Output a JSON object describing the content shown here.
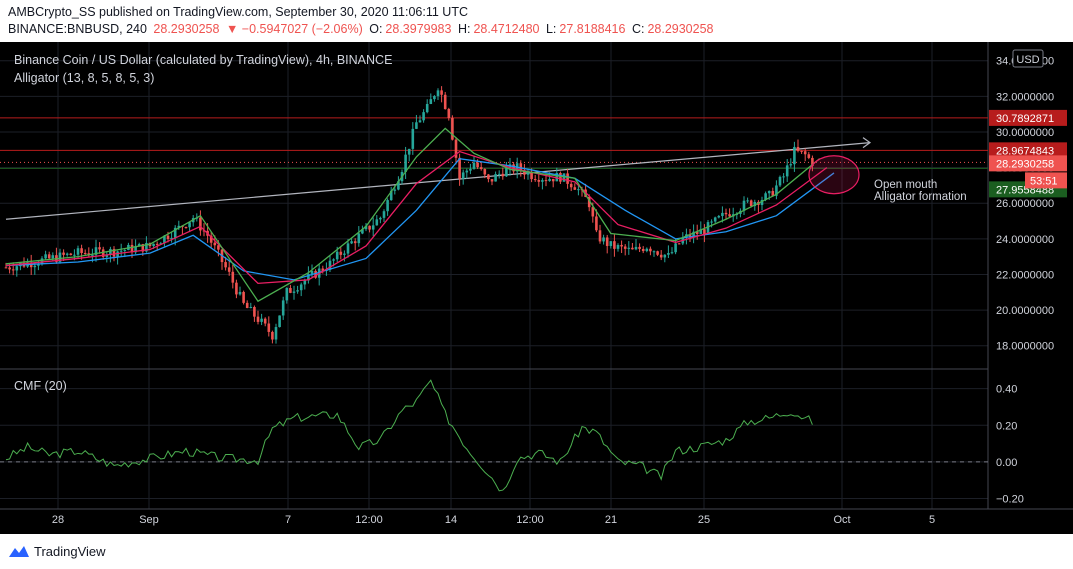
{
  "header": {
    "line1": "AMBCrypto_SS published on TradingView.com, September 30, 2020 11:06:11 UTC",
    "symbol": "BINANCE:BNBUSD, 240",
    "last": "28.2930258",
    "change": "▼ −0.5947027 (−2.06%)",
    "o_label": "O:",
    "o": "28.3979983",
    "h_label": "H:",
    "h": "28.4712480",
    "l_label": "L:",
    "l": "27.8188416",
    "c_label": "C:",
    "c": "28.2930258"
  },
  "pane": {
    "title": "Binance Coin / US Dollar (calculated by TradingView), 4h, BINANCE",
    "indicator": "Alligator (13, 8, 5, 8, 5, 3)",
    "currency": "USD",
    "annotation_line1": "Open mouth",
    "annotation_line2": "Alligator formation",
    "cmf_label": "CMF (20)"
  },
  "footer": {
    "brand": "TradingView"
  },
  "colors": {
    "background": "#000000",
    "up": "#26a69a",
    "down": "#ef5350",
    "jaw": "#2196f3",
    "teeth": "#e91e63",
    "lips": "#4caf50",
    "cmf": "#4caf50",
    "resistance": "#b71c1c",
    "support": "#1b5e20"
  },
  "chart_data": [
    {
      "type": "candlestick",
      "title": "Binance Coin / US Dollar (calculated by TradingView), 4h, BINANCE",
      "x_ticks": [
        "28",
        "Sep",
        "7",
        "12:00",
        "14",
        "12:00",
        "21",
        "25",
        "Oct",
        "5"
      ],
      "y_ticks": [
        18,
        20,
        22,
        24,
        26,
        28,
        30,
        32,
        34
      ],
      "ylim": [
        17.2,
        34.6
      ],
      "price_labels": [
        {
          "value": 30.7892871,
          "text": "30.7892871",
          "role": "resistance"
        },
        {
          "value": 28.9674843,
          "text": "28.9674843",
          "role": "resistance"
        },
        {
          "value": 28.2930258,
          "text": "28.2930258",
          "role": "last"
        },
        {
          "value": 27.9558488,
          "text": "27.9558488",
          "role": "support"
        }
      ],
      "countdown": "53:51",
      "close_path": [
        [
          0,
          22.4
        ],
        [
          10,
          22.8
        ],
        [
          20,
          23.2
        ],
        [
          30,
          23.3
        ],
        [
          40,
          23.6
        ],
        [
          48,
          24.6
        ],
        [
          52,
          25.2
        ],
        [
          56,
          24.2
        ],
        [
          62,
          22.0
        ],
        [
          66,
          20.3
        ],
        [
          70,
          19.5
        ],
        [
          74,
          18.6
        ],
        [
          78,
          21.0
        ],
        [
          84,
          21.8
        ],
        [
          90,
          22.6
        ],
        [
          96,
          23.8
        ],
        [
          104,
          25.2
        ],
        [
          110,
          28.0
        ],
        [
          114,
          30.5
        ],
        [
          117,
          31.3
        ],
        [
          120,
          32.6
        ],
        [
          123,
          31.0
        ],
        [
          126,
          27.4
        ],
        [
          130,
          28.3
        ],
        [
          134,
          27.2
        ],
        [
          138,
          27.8
        ],
        [
          142,
          28.0
        ],
        [
          146,
          27.6
        ],
        [
          150,
          27.4
        ],
        [
          154,
          27.5
        ],
        [
          158,
          27.0
        ],
        [
          162,
          26.0
        ],
        [
          164,
          24.2
        ],
        [
          168,
          23.6
        ],
        [
          174,
          23.3
        ],
        [
          178,
          23.6
        ],
        [
          184,
          23.0
        ],
        [
          188,
          24.0
        ],
        [
          194,
          24.5
        ],
        [
          200,
          25.4
        ],
        [
          206,
          26.0
        ],
        [
          212,
          26.4
        ],
        [
          216,
          27.5
        ],
        [
          219,
          28.9
        ],
        [
          222,
          28.7
        ],
        [
          224,
          28.3
        ]
      ],
      "alligator": {
        "jaw": [
          [
            0,
            22.5
          ],
          [
            20,
            22.7
          ],
          [
            40,
            23.2
          ],
          [
            52,
            24.2
          ],
          [
            66,
            22.2
          ],
          [
            80,
            21.7
          ],
          [
            100,
            22.9
          ],
          [
            114,
            25.6
          ],
          [
            126,
            28.5
          ],
          [
            140,
            28.1
          ],
          [
            158,
            27.4
          ],
          [
            172,
            25.6
          ],
          [
            186,
            24.0
          ],
          [
            200,
            24.4
          ],
          [
            214,
            25.3
          ],
          [
            230,
            27.7
          ]
        ],
        "teeth": [
          [
            0,
            22.5
          ],
          [
            20,
            22.9
          ],
          [
            40,
            23.4
          ],
          [
            54,
            24.7
          ],
          [
            70,
            21.5
          ],
          [
            84,
            21.7
          ],
          [
            100,
            23.6
          ],
          [
            114,
            27.1
          ],
          [
            126,
            28.9
          ],
          [
            140,
            28.0
          ],
          [
            158,
            27.2
          ],
          [
            170,
            24.8
          ],
          [
            186,
            23.8
          ],
          [
            200,
            24.6
          ],
          [
            214,
            25.9
          ],
          [
            228,
            28.0
          ]
        ],
        "lips": [
          [
            0,
            22.6
          ],
          [
            20,
            23.0
          ],
          [
            40,
            23.7
          ],
          [
            54,
            25.3
          ],
          [
            70,
            20.5
          ],
          [
            84,
            22.1
          ],
          [
            100,
            24.7
          ],
          [
            114,
            28.6
          ],
          [
            122,
            30.2
          ],
          [
            130,
            28.8
          ],
          [
            140,
            27.9
          ],
          [
            158,
            27.4
          ],
          [
            168,
            24.3
          ],
          [
            186,
            23.9
          ],
          [
            200,
            25.1
          ],
          [
            214,
            26.5
          ],
          [
            226,
            28.5
          ]
        ]
      },
      "trendline": {
        "from": [
          0,
          25.1
        ],
        "to": [
          240,
          29.4
        ]
      }
    },
    {
      "type": "line",
      "title": "CMF (20)",
      "y_ticks": [
        0.4,
        0.2,
        0.0,
        -0.2
      ],
      "ylim": [
        -0.23,
        0.48
      ],
      "series": [
        {
          "values": [
            [
              0,
              0.02
            ],
            [
              6,
              0.08
            ],
            [
              12,
              0.04
            ],
            [
              20,
              0.06
            ],
            [
              30,
              -0.02
            ],
            [
              40,
              0.02
            ],
            [
              50,
              0.06
            ],
            [
              60,
              0.02
            ],
            [
              70,
              0.01
            ],
            [
              74,
              0.18
            ],
            [
              80,
              0.24
            ],
            [
              86,
              0.25
            ],
            [
              92,
              0.26
            ],
            [
              98,
              0.08
            ],
            [
              104,
              0.12
            ],
            [
              110,
              0.28
            ],
            [
              114,
              0.33
            ],
            [
              118,
              0.44
            ],
            [
              122,
              0.26
            ],
            [
              128,
              0.08
            ],
            [
              134,
              -0.06
            ],
            [
              138,
              -0.16
            ],
            [
              142,
              0.02
            ],
            [
              148,
              0.05
            ],
            [
              154,
              0.0
            ],
            [
              160,
              0.19
            ],
            [
              164,
              0.16
            ],
            [
              170,
              0.0
            ],
            [
              176,
              -0.02
            ],
            [
              182,
              -0.08
            ],
            [
              186,
              0.06
            ],
            [
              192,
              0.08
            ],
            [
              200,
              0.12
            ],
            [
              206,
              0.22
            ],
            [
              212,
              0.24
            ],
            [
              218,
              0.28
            ],
            [
              224,
              0.22
            ]
          ]
        }
      ]
    }
  ]
}
